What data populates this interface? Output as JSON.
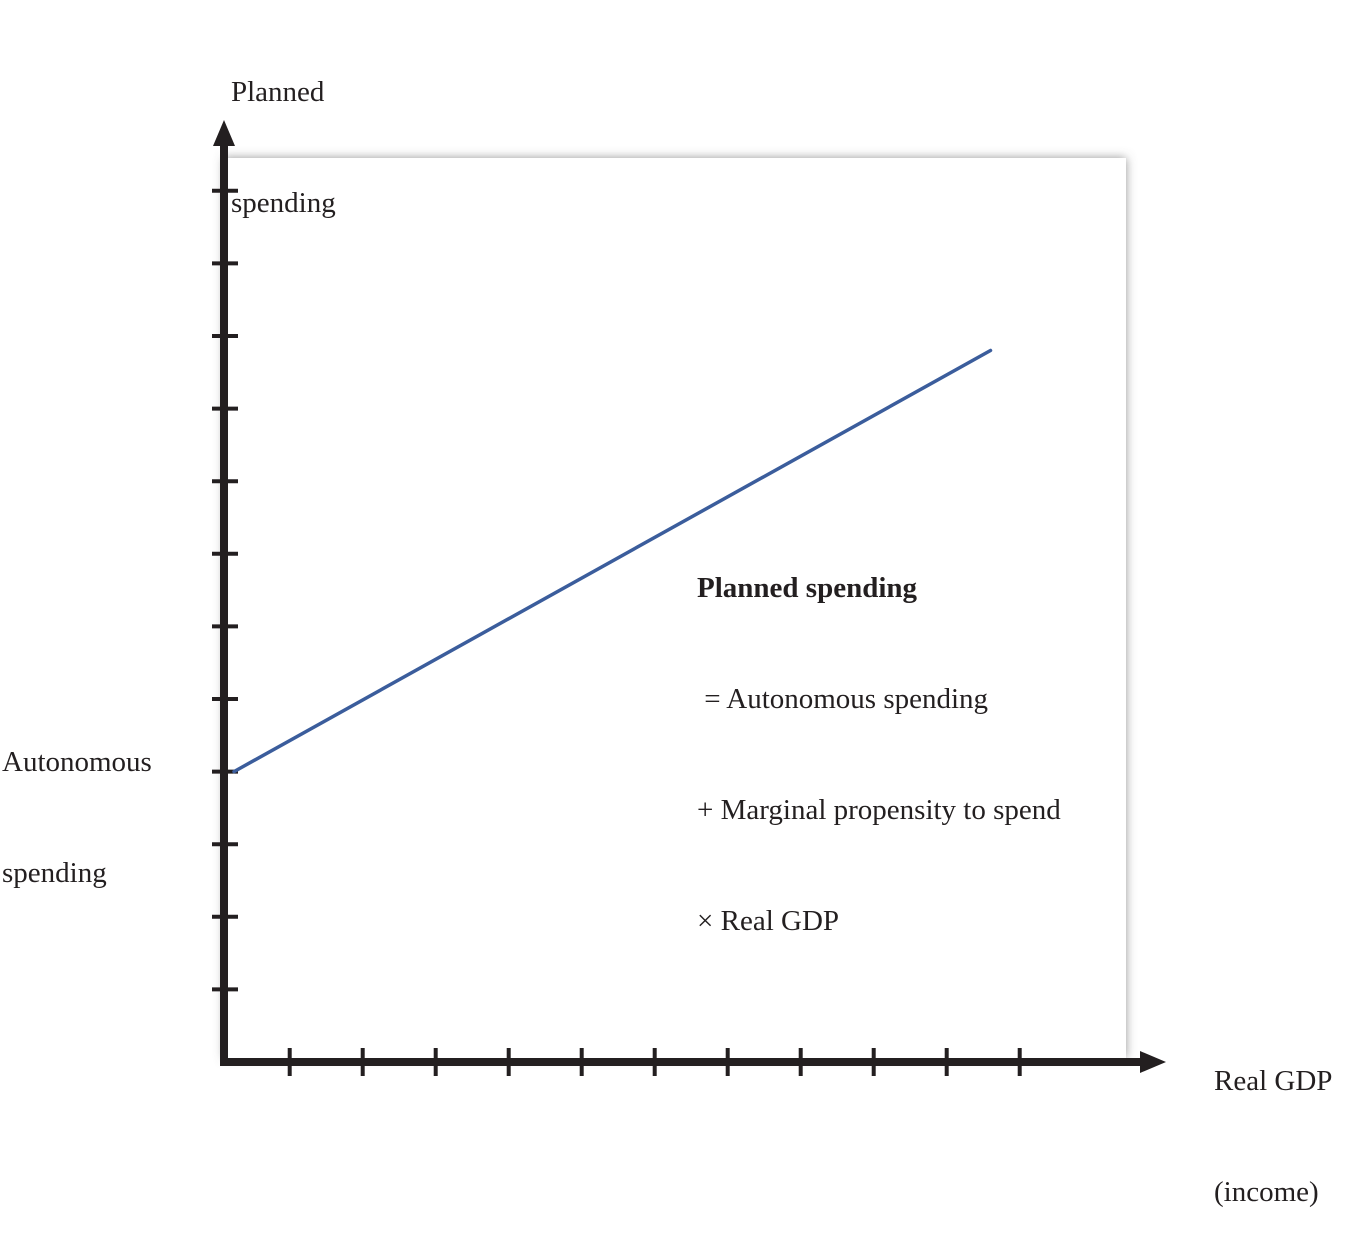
{
  "chart_data": {
    "type": "line",
    "title": "",
    "ylabel": [
      "Planned",
      "spending"
    ],
    "xlabel": [
      "Real GDP",
      "(income)"
    ],
    "y_intercept_label": [
      "Autonomous",
      "spending"
    ],
    "equation": {
      "heading": "Planned spending",
      "lines": [
        " = Autonomous spending",
        "+ Marginal propensity to spend",
        "× Real GDP"
      ]
    },
    "x_ticks": 11,
    "y_ticks": 12,
    "xlim": [
      0,
      12
    ],
    "ylim": [
      0,
      12
    ],
    "grid": false,
    "series": [
      {
        "x": [
          0,
          10.5
        ],
        "y": [
          4.0,
          9.8
        ]
      }
    ],
    "colors": {
      "line": "#3b5d9c",
      "axis": "#231f20",
      "shadow": "#9a9a9a"
    }
  }
}
